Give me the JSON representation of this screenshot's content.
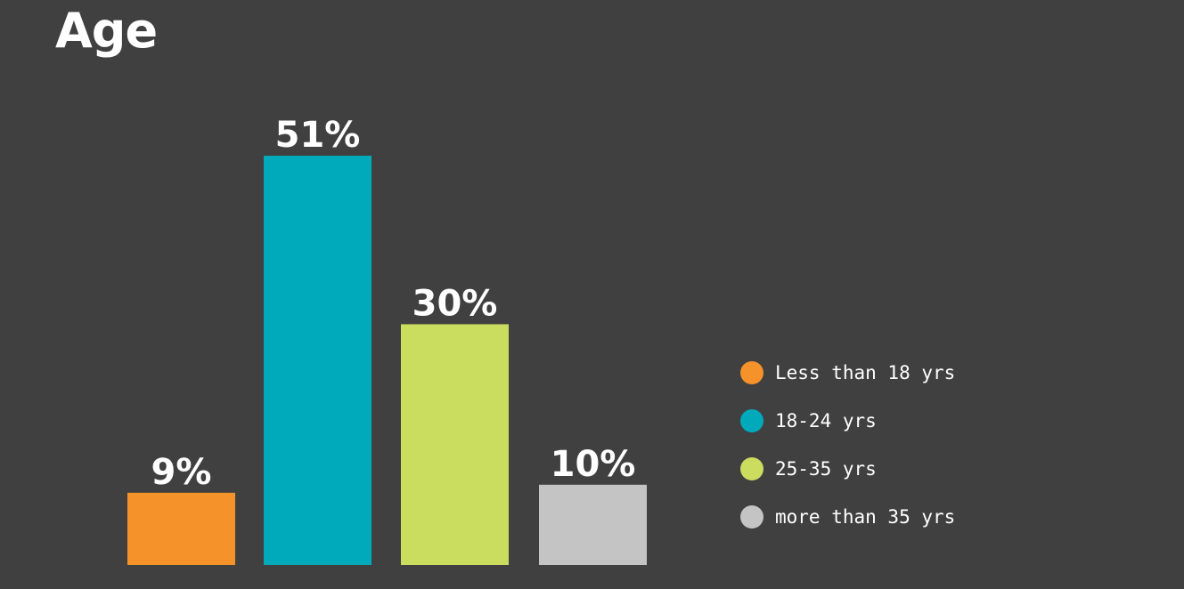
{
  "chart_data": {
    "type": "bar",
    "title": "Age",
    "categories": [
      "Less than 18 yrs",
      "18-24 yrs",
      "25-35 yrs",
      "more than 35 yrs"
    ],
    "values": [
      9,
      51,
      30,
      10
    ],
    "value_labels": [
      "9%",
      "51%",
      "30%",
      "10%"
    ],
    "colors": [
      "#f5922a",
      "#00aabb",
      "#cadd5f",
      "#c4c4c4"
    ],
    "ylim": [
      0,
      51
    ],
    "grid": false,
    "legend_position": "right"
  }
}
